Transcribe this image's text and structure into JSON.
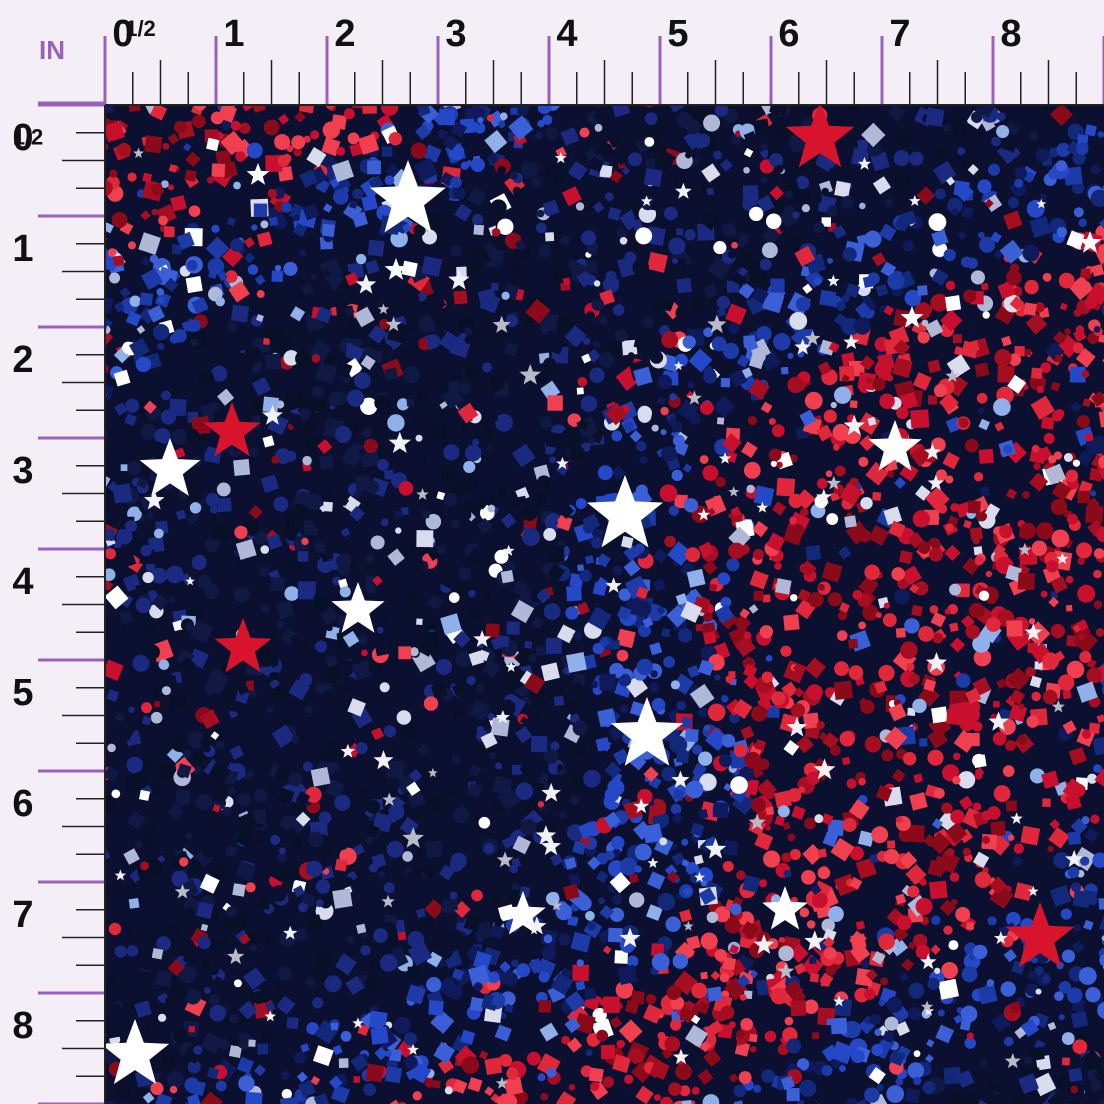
{
  "ruler": {
    "unit": "IN",
    "top_labels": [
      "0",
      "1/2",
      "1",
      "2",
      "3",
      "4",
      "5",
      "6",
      "7",
      "8"
    ],
    "left_labels": [
      "0",
      "1/2",
      "1",
      "2",
      "3",
      "4",
      "5",
      "6",
      "7",
      "8"
    ]
  }
}
